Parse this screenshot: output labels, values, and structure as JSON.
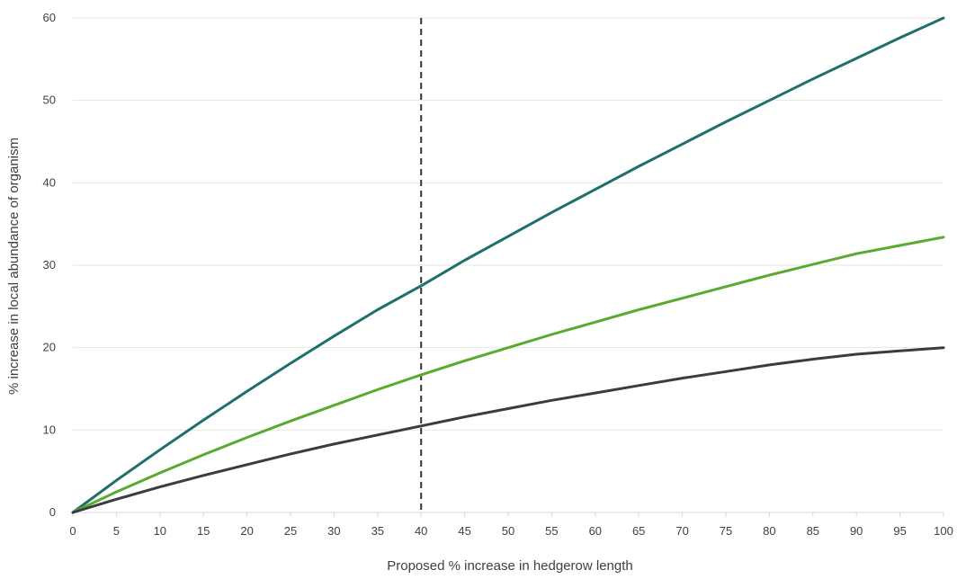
{
  "chart_data": {
    "type": "line",
    "title": "",
    "xlabel": "Proposed % increase in hedgerow length",
    "ylabel": "% increase in local abundance  of organism",
    "xlim": [
      0,
      100
    ],
    "ylim": [
      0,
      60
    ],
    "x_ticks": [
      0,
      5,
      10,
      15,
      20,
      25,
      30,
      35,
      40,
      45,
      50,
      55,
      60,
      65,
      70,
      75,
      80,
      85,
      90,
      95,
      100
    ],
    "y_ticks": [
      0,
      10,
      20,
      30,
      40,
      50,
      60
    ],
    "grid": "horizontal",
    "legend": "none",
    "reference_line": {
      "x": 40,
      "style": "dashed",
      "color": "#333333"
    },
    "x": [
      0,
      5,
      10,
      15,
      20,
      25,
      30,
      35,
      40,
      45,
      50,
      55,
      60,
      65,
      70,
      75,
      80,
      85,
      90,
      95,
      100
    ],
    "series": [
      {
        "color": "#1f6f6a",
        "values": [
          0,
          3.9,
          7.6,
          11.2,
          14.7,
          18.1,
          21.4,
          24.6,
          27.5,
          30.6,
          33.5,
          36.4,
          39.2,
          42.0,
          44.7,
          47.4,
          50.0,
          52.6,
          55.1,
          57.6,
          60.0
        ]
      },
      {
        "color": "#5aaa2e",
        "values": [
          0,
          2.5,
          4.8,
          7.0,
          9.1,
          11.1,
          13.0,
          14.9,
          16.7,
          18.4,
          20.0,
          21.6,
          23.1,
          24.6,
          26.0,
          27.4,
          28.8,
          30.1,
          31.4,
          32.4,
          33.4
        ]
      },
      {
        "color": "#3a3d40",
        "values": [
          0,
          1.6,
          3.1,
          4.5,
          5.8,
          7.1,
          8.3,
          9.4,
          10.5,
          11.6,
          12.6,
          13.6,
          14.5,
          15.4,
          16.3,
          17.1,
          17.9,
          18.6,
          19.2,
          19.6,
          20.0
        ]
      }
    ]
  }
}
